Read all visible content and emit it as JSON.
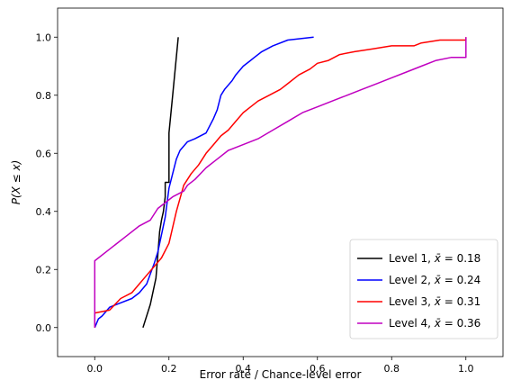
{
  "chart_data": {
    "type": "line",
    "xlabel": "Error rate / Chance-level error",
    "ylabel": "P(X ≤ x)",
    "xlim": [
      -0.1,
      1.1
    ],
    "ylim": [
      -0.1,
      1.1
    ],
    "xticks": [
      0.0,
      0.2,
      0.4,
      0.6,
      0.8,
      1.0
    ],
    "yticks": [
      0.0,
      0.2,
      0.4,
      0.6,
      0.8,
      1.0
    ],
    "xtick_labels": [
      "0.0",
      "0.2",
      "0.4",
      "0.6",
      "0.8",
      "1.0"
    ],
    "ytick_labels": [
      "0.0",
      "0.2",
      "0.4",
      "0.6",
      "0.8",
      "1.0"
    ],
    "grid": false,
    "legend_position": "bottom-right",
    "series": [
      {
        "name": "Level 1, x̄ = 0.18",
        "legend_prefix": "Level 1, ",
        "legend_mean": "0.18",
        "color": "#000000",
        "x": [
          0.13,
          0.15,
          0.165,
          0.17,
          0.175,
          0.18,
          0.185,
          0.19,
          0.19,
          0.2,
          0.2,
          0.21,
          0.225
        ],
        "y": [
          0.0,
          0.08,
          0.17,
          0.25,
          0.33,
          0.37,
          0.4,
          0.45,
          0.5,
          0.5,
          0.67,
          0.8,
          1.0
        ]
      },
      {
        "name": "Level 2, x̄ = 0.24",
        "legend_prefix": "Level 2, ",
        "legend_mean": "0.24",
        "color": "#0000ff",
        "x": [
          0.0,
          0.01,
          0.02,
          0.04,
          0.06,
          0.1,
          0.12,
          0.14,
          0.16,
          0.17,
          0.18,
          0.19,
          0.2,
          0.21,
          0.22,
          0.23,
          0.25,
          0.27,
          0.3,
          0.32,
          0.33,
          0.34,
          0.35,
          0.37,
          0.38,
          0.4,
          0.42,
          0.43,
          0.45,
          0.48,
          0.52,
          0.59
        ],
        "y": [
          0.0,
          0.03,
          0.04,
          0.07,
          0.08,
          0.1,
          0.12,
          0.15,
          0.22,
          0.26,
          0.32,
          0.38,
          0.48,
          0.53,
          0.58,
          0.61,
          0.64,
          0.65,
          0.67,
          0.72,
          0.75,
          0.8,
          0.82,
          0.85,
          0.87,
          0.9,
          0.92,
          0.93,
          0.95,
          0.97,
          0.99,
          1.0
        ]
      },
      {
        "name": "Level 3, x̄ = 0.31",
        "legend_prefix": "Level 3, ",
        "legend_mean": "0.31",
        "color": "#ff0000",
        "x": [
          0.0,
          0.0,
          0.04,
          0.07,
          0.1,
          0.12,
          0.14,
          0.16,
          0.18,
          0.2,
          0.22,
          0.24,
          0.26,
          0.28,
          0.3,
          0.32,
          0.34,
          0.36,
          0.38,
          0.4,
          0.42,
          0.44,
          0.47,
          0.5,
          0.52,
          0.55,
          0.58,
          0.6,
          0.63,
          0.66,
          0.7,
          0.75,
          0.8,
          0.86,
          0.88,
          0.93,
          1.0,
          1.0
        ],
        "y": [
          0.0,
          0.05,
          0.06,
          0.1,
          0.12,
          0.15,
          0.18,
          0.21,
          0.24,
          0.29,
          0.4,
          0.49,
          0.53,
          0.56,
          0.6,
          0.63,
          0.66,
          0.68,
          0.71,
          0.74,
          0.76,
          0.78,
          0.8,
          0.82,
          0.84,
          0.87,
          0.89,
          0.91,
          0.92,
          0.94,
          0.95,
          0.96,
          0.97,
          0.97,
          0.98,
          0.99,
          0.99,
          1.0
        ]
      },
      {
        "name": "Level 4, x̄ = 0.36",
        "legend_prefix": "Level 4, ",
        "legend_mean": "0.36",
        "color": "#c000c0",
        "x": [
          0.0,
          0.0,
          0.04,
          0.08,
          0.12,
          0.15,
          0.17,
          0.19,
          0.21,
          0.24,
          0.25,
          0.27,
          0.3,
          0.33,
          0.36,
          0.4,
          0.44,
          0.48,
          0.52,
          0.56,
          0.6,
          0.64,
          0.68,
          0.72,
          0.76,
          0.8,
          0.84,
          0.88,
          0.92,
          0.96,
          1.0,
          1.0
        ],
        "y": [
          0.0,
          0.23,
          0.27,
          0.31,
          0.35,
          0.37,
          0.41,
          0.43,
          0.45,
          0.47,
          0.49,
          0.51,
          0.55,
          0.58,
          0.61,
          0.63,
          0.65,
          0.68,
          0.71,
          0.74,
          0.76,
          0.78,
          0.8,
          0.82,
          0.84,
          0.86,
          0.88,
          0.9,
          0.92,
          0.93,
          0.93,
          1.0
        ]
      }
    ]
  }
}
